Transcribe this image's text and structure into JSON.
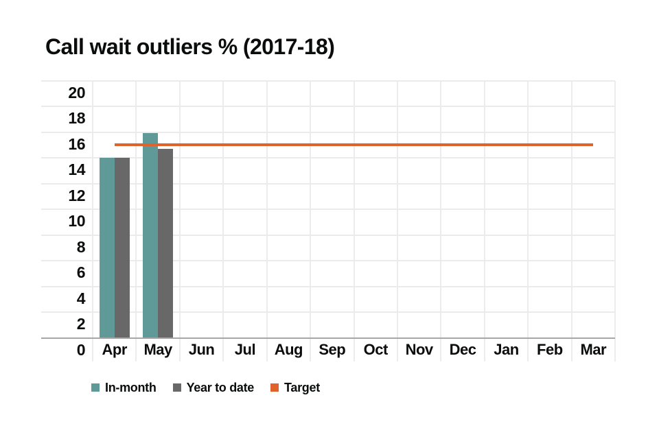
{
  "page": {
    "background_color": "#ffffff",
    "text_color": "#0b0c0c",
    "gridline_color": "#ebebeb",
    "axis_line_color": "#a6a6a6"
  },
  "chart_data": {
    "type": "bar",
    "title": "Call wait outliers % (2017-18)",
    "categories": [
      "Apr",
      "May",
      "Jun",
      "Jul",
      "Aug",
      "Sep",
      "Oct",
      "Nov",
      "Dec",
      "Jan",
      "Feb",
      "Mar"
    ],
    "series": [
      {
        "name": "In-month",
        "type": "bar",
        "color": "#5f9a99",
        "values": [
          14.0,
          15.9,
          null,
          null,
          null,
          null,
          null,
          null,
          null,
          null,
          null,
          null
        ]
      },
      {
        "name": "Year to date",
        "type": "bar",
        "color": "#686868",
        "values": [
          14.0,
          14.7,
          null,
          null,
          null,
          null,
          null,
          null,
          null,
          null,
          null,
          null
        ]
      },
      {
        "name": "Target",
        "type": "line",
        "color": "#e0632e",
        "values": [
          15,
          15,
          15,
          15,
          15,
          15,
          15,
          15,
          15,
          15,
          15,
          15
        ]
      }
    ],
    "xlabel": "",
    "ylabel": "",
    "ylim": [
      0,
      20
    ],
    "ytick_step": 2,
    "yticks": [
      0,
      2,
      4,
      6,
      8,
      10,
      12,
      14,
      16,
      18,
      20
    ],
    "grid": true,
    "legend_position": "bottom"
  }
}
